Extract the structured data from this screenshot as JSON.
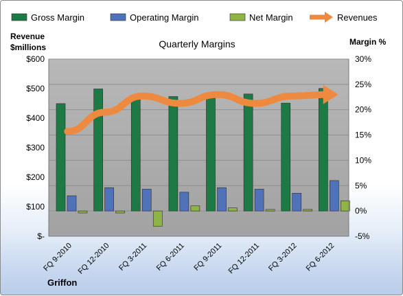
{
  "chart_data": {
    "type": "bar",
    "title": "Quarterly Margins",
    "company": "Griffon",
    "left_axis_title": [
      "Revenue",
      "$millions"
    ],
    "right_axis_title": "Margin %",
    "categories": [
      "FQ 9-2010",
      "FQ 12-2010",
      "FQ 3-2011",
      "FQ 6-2011",
      "FQ 9-2011",
      "FQ 12-2011",
      "FQ 3-2012",
      "FQ 6-2012"
    ],
    "left_ticks": [
      "$-",
      "$100",
      "$200",
      "$300",
      "$400",
      "$500",
      "$600"
    ],
    "right_ticks": [
      "-5%",
      "0%",
      "5%",
      "10%",
      "15%",
      "20%",
      "25%",
      "30%"
    ],
    "ylim_left": [
      0,
      600
    ],
    "ylim_right": [
      -5,
      30
    ],
    "legend_position": "top",
    "grid": true,
    "series": [
      {
        "name": "Gross Margin",
        "type": "bar",
        "axis": "right",
        "color": "#1e7a45",
        "values": [
          21.2,
          24.1,
          22.8,
          22.6,
          22.5,
          23.1,
          21.3,
          24.2
        ]
      },
      {
        "name": "Operating Margin",
        "type": "bar",
        "axis": "right",
        "color": "#4f72b8",
        "values": [
          3.0,
          4.6,
          4.3,
          3.7,
          4.6,
          4.3,
          3.5,
          6.0
        ]
      },
      {
        "name": "Net Margin",
        "type": "bar",
        "axis": "right",
        "color": "#8fb347",
        "values": [
          -0.4,
          -0.4,
          -3.0,
          1.0,
          0.6,
          0.3,
          0.3,
          2.0
        ]
      },
      {
        "name": "Revenues",
        "type": "line",
        "axis": "left",
        "color": "#ed8a3f",
        "values": [
          355,
          420,
          475,
          450,
          480,
          450,
          475,
          480
        ]
      }
    ]
  }
}
